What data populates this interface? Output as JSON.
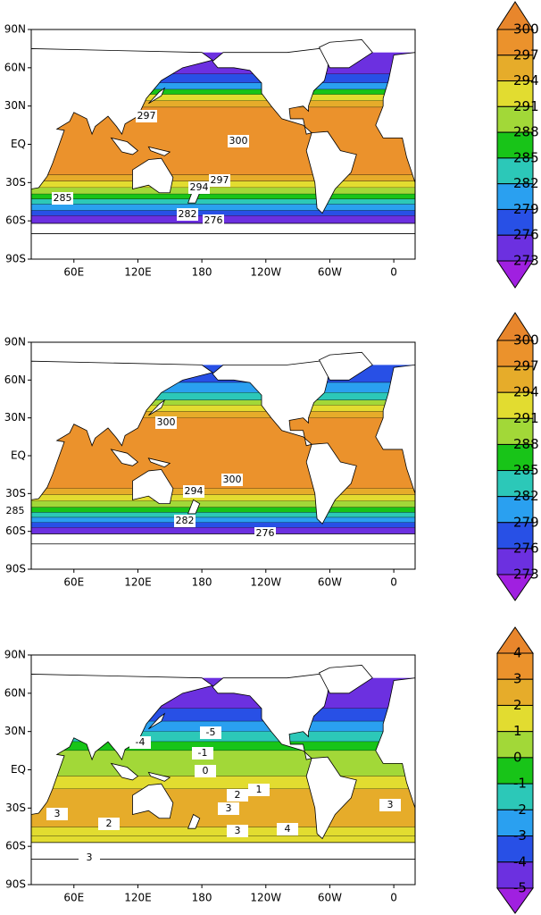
{
  "map_axes": {
    "lat_labels": [
      "90N",
      "60N",
      "30N",
      "EQ",
      "30S",
      "60S",
      "90S"
    ],
    "lon_labels": [
      "60E",
      "120E",
      "180",
      "120W",
      "60W",
      "0"
    ]
  },
  "panels": [
    {
      "colorbar": {
        "levels": [
          300,
          297,
          294,
          291,
          288,
          285,
          282,
          279,
          276,
          273
        ],
        "colors": [
          "#e8862c",
          "#eb922c",
          "#e6ac2a",
          "#e2dc30",
          "#a2d838",
          "#18c418",
          "#2cc8b8",
          "#2aa0f0",
          "#2850e6",
          "#6c30e0",
          "#a020e0"
        ]
      },
      "contour_labels": [
        297,
        300,
        297,
        294,
        285,
        282,
        276
      ]
    },
    {
      "colorbar": {
        "levels": [
          300,
          297,
          294,
          291,
          288,
          285,
          282,
          279,
          276,
          273
        ],
        "colors": [
          "#e8862c",
          "#eb922c",
          "#e6ac2a",
          "#e2dc30",
          "#a2d838",
          "#18c418",
          "#2cc8b8",
          "#2aa0f0",
          "#2850e6",
          "#6c30e0",
          "#a020e0"
        ]
      },
      "contour_labels": [
        300,
        300,
        294,
        285,
        282,
        276
      ]
    },
    {
      "colorbar": {
        "levels": [
          4,
          3,
          2,
          1,
          0,
          -1,
          -2,
          -3,
          -4,
          -5
        ],
        "colors": [
          "#e8862c",
          "#eb922c",
          "#e6ac2a",
          "#e2dc30",
          "#a2d838",
          "#18c418",
          "#2cc8b8",
          "#2aa0f0",
          "#2850e6",
          "#6c30e0",
          "#a020e0"
        ]
      },
      "contour_labels": [
        3,
        -4,
        -5,
        -1,
        0,
        2,
        1,
        3,
        3,
        2,
        3,
        4,
        3
      ]
    }
  ]
}
